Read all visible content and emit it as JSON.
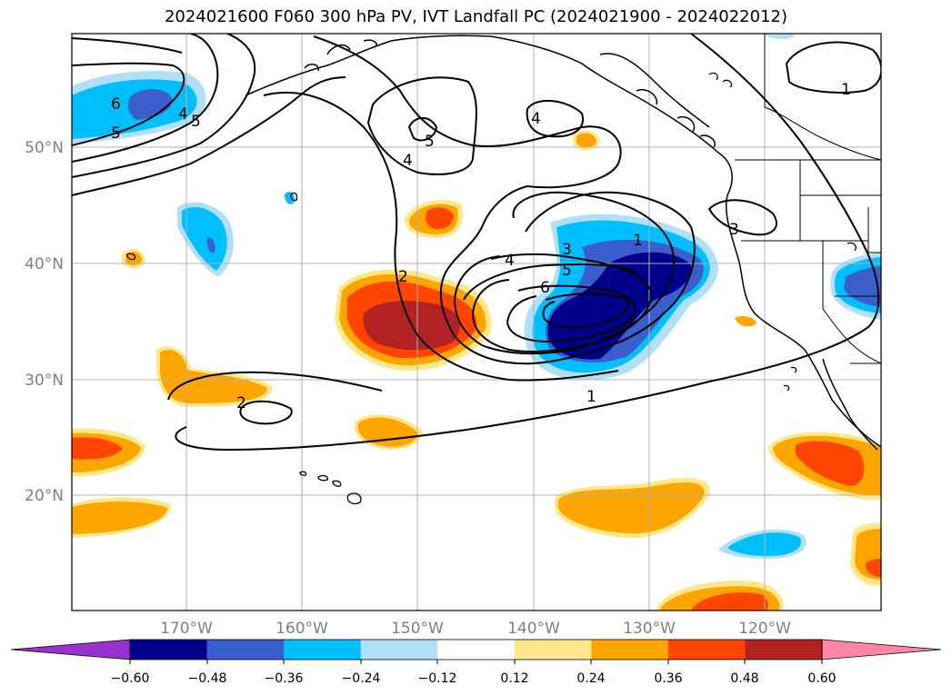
{
  "title": "2024021600 F060 300 hPa PV, IVT Landfall PC (2024021900 - 2024022012)",
  "map": {
    "lat_labels": [
      "50°N",
      "40°N",
      "30°N",
      "20°N"
    ],
    "lon_labels": [
      "170°W",
      "160°W",
      "150°W",
      "140°W",
      "130°W",
      "120°W"
    ],
    "gridlines": true,
    "contour_labels": [
      "6",
      "4",
      "5",
      "5",
      "4",
      "4",
      "5",
      "1",
      "2",
      "4",
      "3",
      "5",
      "6",
      "1",
      "3",
      "2",
      "1"
    ]
  },
  "colorbar": {
    "ticks": [
      "−0.60",
      "−0.48",
      "−0.36",
      "−0.24",
      "−0.12",
      "0.12",
      "0.24",
      "0.36",
      "0.48",
      "0.60"
    ],
    "colors": [
      "#9932cc",
      "#00008b",
      "#3a5fcd",
      "#00bfff",
      "#b0e0f8",
      "#ffffff",
      "#ffe88a",
      "#ffa500",
      "#ff4500",
      "#b22222",
      "#ff85a8"
    ]
  }
}
